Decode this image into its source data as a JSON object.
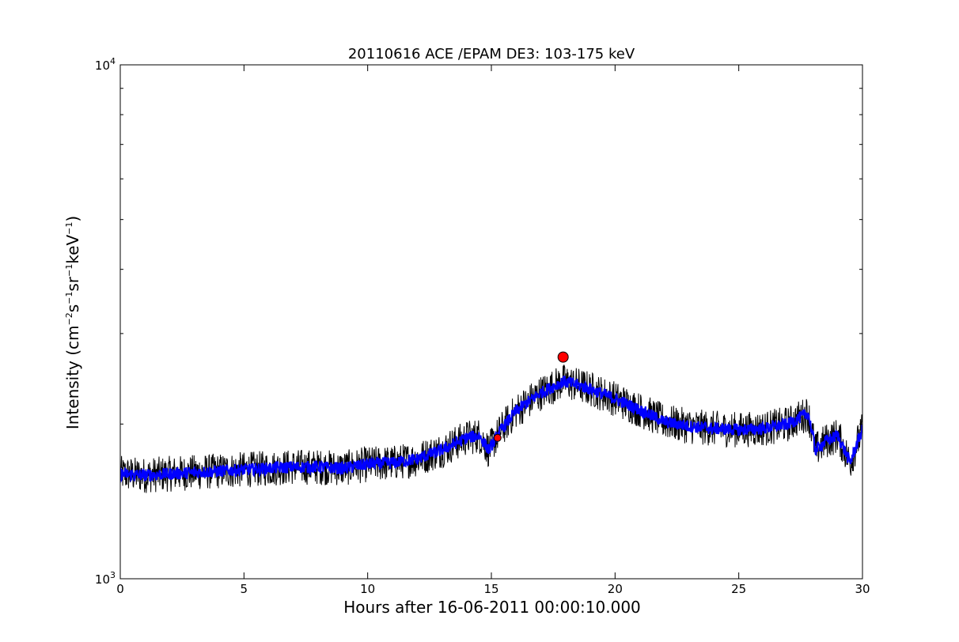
{
  "chart_data": {
    "type": "line",
    "title": "20110616 ACE /EPAM DE3: 103-175 keV",
    "xlabel": "Hours after 16-06-2011 00:00:10.000",
    "ylabel_parts": [
      "Intensity (cm",
      "−2",
      "s",
      "−1",
      "sr",
      "−1",
      "keV",
      "−1",
      ")"
    ],
    "xlim": [
      0,
      30
    ],
    "ylim": [
      1000,
      10000
    ],
    "yscale": "log",
    "xticks": [
      "0",
      "5",
      "10",
      "15",
      "20",
      "25",
      "30"
    ],
    "yticks": [
      {
        "base": "10",
        "exp": "3"
      },
      {
        "base": "10",
        "exp": "4"
      }
    ],
    "grid": false,
    "colors": {
      "raw": "#000000",
      "smoothed": "#0000ff",
      "markers": "#ff0000"
    },
    "series": [
      {
        "id": "raw",
        "x": [
          0,
          1,
          2,
          3,
          4,
          5,
          6,
          7,
          8,
          9,
          10,
          11,
          12,
          13,
          14,
          14.5,
          14.9,
          15.3,
          16,
          17,
          17.9,
          18.5,
          19,
          20,
          21,
          22,
          23,
          24,
          25,
          26,
          27,
          27.8,
          28.1,
          28.5,
          29,
          29.5,
          30
        ],
        "y": [
          1600,
          1590,
          1600,
          1610,
          1620,
          1630,
          1640,
          1650,
          1650,
          1640,
          1670,
          1680,
          1710,
          1780,
          1880,
          1900,
          1780,
          1920,
          2120,
          2300,
          2420,
          2380,
          2340,
          2240,
          2130,
          2020,
          1980,
          1960,
          1950,
          1960,
          2000,
          2100,
          1780,
          1850,
          1900,
          1680,
          1950
        ],
        "noise": 0.035
      },
      {
        "id": "smoothed",
        "x": [
          0,
          1,
          2,
          3,
          4,
          5,
          6,
          7,
          8,
          9,
          10,
          11,
          12,
          13,
          14,
          14.5,
          14.9,
          15.3,
          16,
          17,
          17.9,
          18.5,
          19,
          20,
          21,
          22,
          23,
          24,
          25,
          26,
          27,
          27.8,
          28.1,
          28.5,
          29,
          29.5,
          30
        ],
        "y": [
          1600,
          1590,
          1600,
          1610,
          1620,
          1630,
          1640,
          1650,
          1650,
          1640,
          1670,
          1680,
          1710,
          1780,
          1880,
          1900,
          1780,
          1920,
          2120,
          2300,
          2420,
          2380,
          2340,
          2240,
          2130,
          2020,
          1980,
          1960,
          1950,
          1960,
          2000,
          2100,
          1780,
          1850,
          1900,
          1680,
          1950
        ],
        "noise": 0.012
      }
    ],
    "markers": [
      {
        "x": 15.25,
        "y": 1880,
        "size": "small"
      },
      {
        "x": 17.9,
        "y": 2700,
        "size": "large"
      }
    ]
  }
}
